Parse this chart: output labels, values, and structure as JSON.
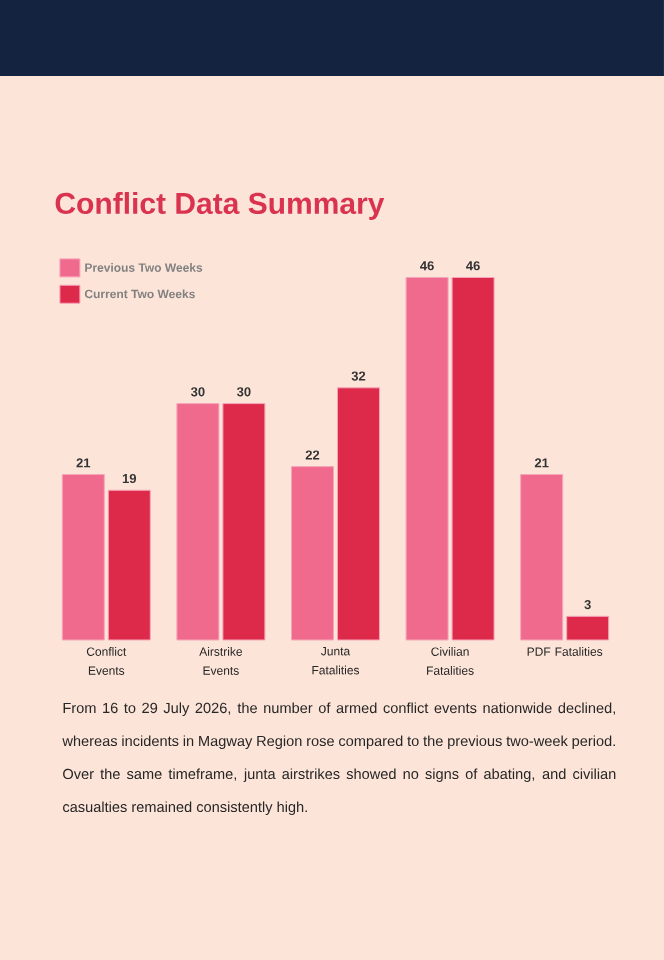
{
  "chart_data": {
    "type": "bar",
    "title": "Conflict Data Summary",
    "categories": [
      "Conflict Events",
      "Airstrike Events",
      "Junta Fatalities",
      "Civilian Fatalities",
      "PDF Fatalities"
    ],
    "series": [
      {
        "name": "Previous Two Weeks",
        "color": "#f06a8e",
        "values": [
          21,
          30,
          22,
          46,
          21
        ]
      },
      {
        "name": "Current Two Weeks",
        "color": "#de2a4a",
        "values": [
          19,
          30,
          32,
          46,
          3
        ]
      }
    ],
    "data_labels": true,
    "legend": "top left",
    "annotations": [
      "From 16 to 29 July 2026, the number of armed conflict events nationwide declined, whereas incidents in Magway Region rose compared to the previous two-week period. Over the same timeframe, junta airstrikes showed no signs of abating, and civilian casualties remained consistently high."
    ]
  }
}
